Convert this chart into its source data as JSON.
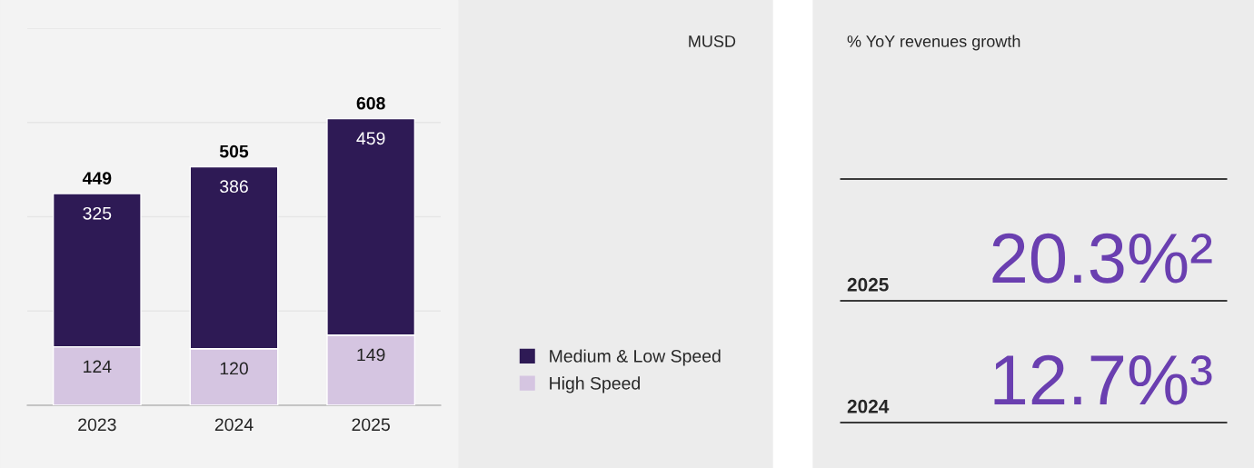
{
  "chart_data": [
    {
      "type": "bar",
      "stacked": true,
      "ylabel": "MUSD",
      "categories": [
        "2023",
        "2024",
        "2025"
      ],
      "series": [
        {
          "name": "High Speed",
          "color": "#d5c5e1",
          "values": [
            124,
            120,
            149
          ]
        },
        {
          "name": "Medium & Low Speed",
          "color": "#2e1a55",
          "values": [
            325,
            386,
            459
          ]
        }
      ],
      "totals": [
        "449",
        "505",
        "608"
      ],
      "data_labels": true,
      "ylim": [
        0,
        800
      ],
      "yticks": [
        {
          "value": 0,
          "label": null
        },
        {
          "value": 200,
          "label": null
        },
        {
          "value": 400,
          "label": null
        },
        {
          "value": 600,
          "label": null
        },
        {
          "value": 800,
          "label": null
        }
      ],
      "grid": "y",
      "tick_labels": "x",
      "legend": "right"
    },
    {
      "type": "other",
      "title": "% YoY revenues growth",
      "annotations": [
        "2025",
        "20.3%²",
        "2024",
        "12.7%³"
      ]
    }
  ]
}
